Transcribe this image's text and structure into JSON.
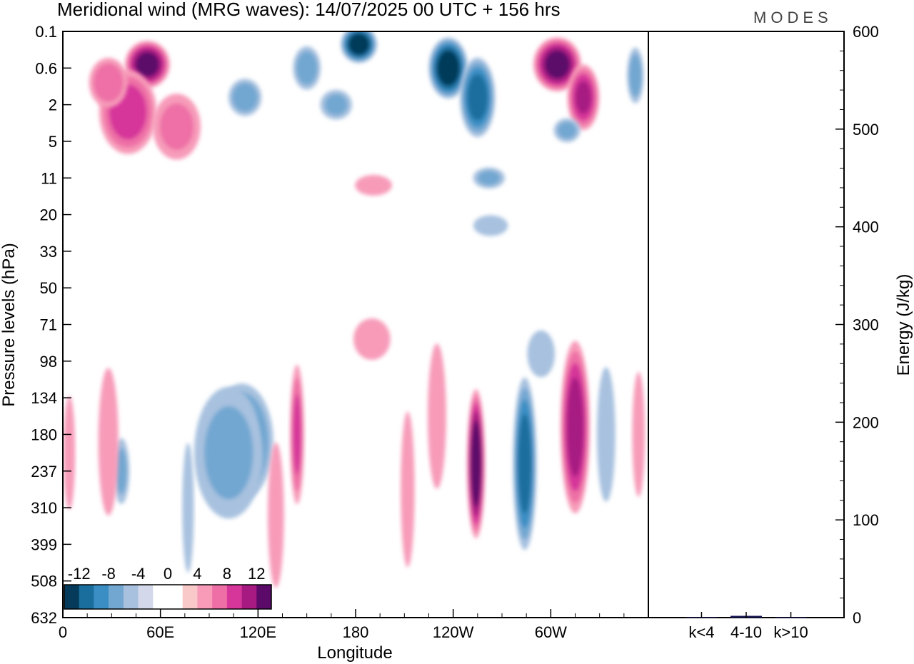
{
  "chart_data": [
    {
      "type": "heatmap",
      "title": "Meridional wind (MRG waves):  14/07/2025  00 UTC  + 156 hrs",
      "brand": "MODES",
      "xlabel": "Longitude",
      "ylabel": "Pressure levels (hPa)",
      "x_ticks": [
        {
          "lon": 0,
          "label": "0"
        },
        {
          "lon": 60,
          "label": "60E"
        },
        {
          "lon": 120,
          "label": "120E"
        },
        {
          "lon": 180,
          "label": "180"
        },
        {
          "lon": 240,
          "label": "120W"
        },
        {
          "lon": 300,
          "label": "60W"
        }
      ],
      "xlim": [
        0,
        360
      ],
      "y_levels": [
        "0.1",
        "0.6",
        "2",
        "5",
        "11",
        "20",
        "33",
        "50",
        "71",
        "98",
        "134",
        "180",
        "237",
        "310",
        "399",
        "508",
        "632"
      ],
      "y_axis": "pressure, decreasing upward (level-indexed)",
      "colorbar": {
        "position": "bottom-left",
        "labels": [
          "-12",
          "-8",
          "-4",
          "0",
          "4",
          "8",
          "12"
        ],
        "colors": [
          "#063a5a",
          "#1a6e9e",
          "#3b8ec4",
          "#72a7d1",
          "#a7c1df",
          "#d3d8ea",
          "#ffffff",
          "#ffffff",
          "#f9c9c9",
          "#f79bb9",
          "#ee6fa6",
          "#d6359a",
          "#a71a82",
          "#5c0a6a"
        ]
      },
      "features": [
        {
          "lon": 52,
          "level": 0.9,
          "value": 12,
          "rx": 15,
          "ry": 0.7
        },
        {
          "lon": 40,
          "level": 2.2,
          "value": 8,
          "rx": 20,
          "ry": 1.3
        },
        {
          "lon": 28,
          "level": 1.4,
          "value": 6,
          "rx": 14,
          "ry": 0.8
        },
        {
          "lon": 70,
          "level": 2.6,
          "value": 5,
          "rx": 18,
          "ry": 1.1
        },
        {
          "lon": 182,
          "level": 0.35,
          "value": -13,
          "rx": 12,
          "ry": 0.55
        },
        {
          "lon": 150,
          "level": 1.0,
          "value": -6,
          "rx": 10,
          "ry": 0.7
        },
        {
          "lon": 112,
          "level": 1.8,
          "value": -6,
          "rx": 12,
          "ry": 0.6
        },
        {
          "lon": 168,
          "level": 2.0,
          "value": -5,
          "rx": 12,
          "ry": 0.5
        },
        {
          "lon": 237,
          "level": 1.0,
          "value": -13,
          "rx": 13,
          "ry": 0.9
        },
        {
          "lon": 255,
          "level": 1.8,
          "value": -10,
          "rx": 12,
          "ry": 1.2
        },
        {
          "lon": 304,
          "level": 0.9,
          "value": 12,
          "rx": 16,
          "ry": 0.8
        },
        {
          "lon": 320,
          "level": 1.8,
          "value": 9,
          "rx": 11,
          "ry": 1.0
        },
        {
          "lon": 352,
          "level": 1.2,
          "value": -6,
          "rx": 6,
          "ry": 0.9
        },
        {
          "lon": 310,
          "level": 2.7,
          "value": -5,
          "rx": 10,
          "ry": 0.4
        },
        {
          "lon": 262,
          "level": 4.0,
          "value": -5,
          "rx": 12,
          "ry": 0.35
        },
        {
          "lon": 191,
          "level": 4.2,
          "value": 3,
          "rx": 16,
          "ry": 0.4
        },
        {
          "lon": 263,
          "level": 5.3,
          "value": -3,
          "rx": 15,
          "ry": 0.4
        },
        {
          "lon": 110,
          "level": 11.2,
          "value": -8,
          "rx": 22,
          "ry": 1.8
        },
        {
          "lon": 102,
          "level": 11.5,
          "value": -5,
          "rx": 26,
          "ry": 2.2
        },
        {
          "lon": 144,
          "level": 11.0,
          "value": 7,
          "rx": 5,
          "ry": 2.2
        },
        {
          "lon": 254,
          "level": 11.8,
          "value": 13,
          "rx": 6,
          "ry": 2.2
        },
        {
          "lon": 284,
          "level": 11.8,
          "value": -10,
          "rx": 8,
          "ry": 2.6
        },
        {
          "lon": 315,
          "level": 10.8,
          "value": 10,
          "rx": 10,
          "ry": 2.6
        },
        {
          "lon": 334,
          "level": 11.0,
          "value": -3,
          "rx": 8,
          "ry": 2.6
        },
        {
          "lon": 36,
          "level": 12.0,
          "value": -5,
          "rx": 6,
          "ry": 1.1
        },
        {
          "lon": 28,
          "level": 11.2,
          "value": 4,
          "rx": 8,
          "ry": 2.6
        },
        {
          "lon": 4,
          "level": 11.5,
          "value": 3,
          "rx": 5,
          "ry": 2.2
        },
        {
          "lon": 354,
          "level": 11.0,
          "value": 4,
          "rx": 5,
          "ry": 2.2
        },
        {
          "lon": 230,
          "level": 10.5,
          "value": 3,
          "rx": 8,
          "ry": 2.8
        },
        {
          "lon": 198,
          "level": 12.5,
          "value": -2,
          "rx": 8,
          "ry": 3.0
        },
        {
          "lon": 212,
          "level": 12.5,
          "value": 3,
          "rx": 6,
          "ry": 3.0
        },
        {
          "lon": 77,
          "level": 13.0,
          "value": -3,
          "rx": 5,
          "ry": 2.5
        },
        {
          "lon": 131,
          "level": 13.2,
          "value": 3,
          "rx": 7,
          "ry": 2.8
        },
        {
          "lon": 245,
          "level": 8.5,
          "value": -2,
          "rx": 14,
          "ry": 0.9
        },
        {
          "lon": 294,
          "level": 8.8,
          "value": -3,
          "rx": 12,
          "ry": 0.9
        },
        {
          "lon": 190,
          "level": 8.4,
          "value": 3,
          "rx": 16,
          "ry": 0.8
        },
        {
          "lon": 157,
          "level": 8.8,
          "value": -2,
          "rx": 14,
          "ry": 0.6
        }
      ]
    },
    {
      "type": "bar",
      "categories": [
        "k<4",
        "4-10",
        "k>10"
      ],
      "values": [
        0.6,
        1.8,
        0.3
      ],
      "ylabel": "Energy (J/kg)",
      "ylim": [
        0,
        600
      ],
      "y_ticks": [
        "0",
        "100",
        "200",
        "300",
        "400",
        "500",
        "600"
      ],
      "bar_color": "#1a1a5a"
    }
  ]
}
